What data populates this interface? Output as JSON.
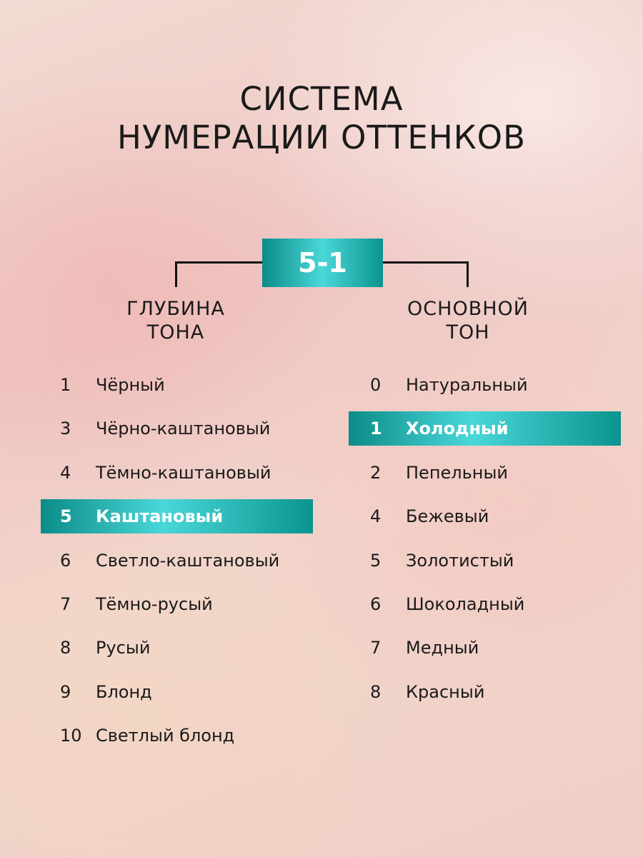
{
  "title": {
    "line1": "СИСТЕМА",
    "line2": "НУМЕРАЦИИ ОТТЕНКОВ"
  },
  "code": "5-1",
  "left": {
    "heading1": "ГЛУБИНА",
    "heading2": "ТОНА",
    "items": [
      {
        "num": "1",
        "label": "Чёрный"
      },
      {
        "num": "3",
        "label": "Чёрно-каштановый"
      },
      {
        "num": "4",
        "label": "Тёмно-каштановый"
      },
      {
        "num": "5",
        "label": "Каштановый",
        "highlighted": true
      },
      {
        "num": "6",
        "label": "Светло-каштановый"
      },
      {
        "num": "7",
        "label": "Тёмно-русый"
      },
      {
        "num": "8",
        "label": "Русый"
      },
      {
        "num": "9",
        "label": "Блонд"
      },
      {
        "num": "10",
        "label": "Светлый блонд"
      }
    ]
  },
  "right": {
    "heading1": "ОСНОВНОЙ",
    "heading2": "ТОН",
    "items": [
      {
        "num": "0",
        "label": "Натуральный"
      },
      {
        "num": "1",
        "label": "Холодный",
        "highlighted": true
      },
      {
        "num": "2",
        "label": "Пепельный"
      },
      {
        "num": "4",
        "label": "Бежевый"
      },
      {
        "num": "5",
        "label": "Золотистый"
      },
      {
        "num": "6",
        "label": "Шоколадный"
      },
      {
        "num": "7",
        "label": "Медный"
      },
      {
        "num": "8",
        "label": "Красный"
      }
    ]
  },
  "colors": {
    "accent_dark": "#0b8c88",
    "accent_light": "#4ad7d9"
  }
}
